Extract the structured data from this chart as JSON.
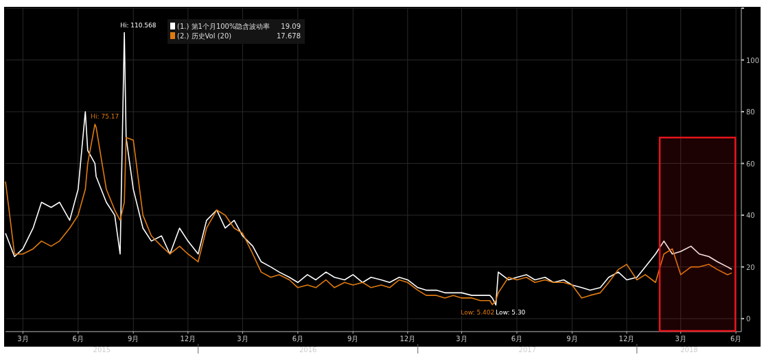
{
  "chart_data": {
    "type": "line",
    "x": [
      "2015-02-14",
      "2015-03-01",
      "2015-03-15",
      "2015-04-01",
      "2015-04-15",
      "2015-05-01",
      "2015-05-15",
      "2015-06-01",
      "2015-06-15",
      "2015-06-27",
      "2015-07-01",
      "2015-07-13",
      "2015-07-15",
      "2015-08-01",
      "2015-08-15",
      "2015-08-24",
      "2015-08-31",
      "2015-09-03",
      "2015-09-15",
      "2015-10-01",
      "2015-10-15",
      "2015-11-01",
      "2015-11-15",
      "2015-12-01",
      "2015-12-15",
      "2016-01-01",
      "2016-01-15",
      "2016-02-01",
      "2016-02-15",
      "2016-03-01",
      "2016-03-15",
      "2016-04-01",
      "2016-04-15",
      "2016-05-01",
      "2016-05-15",
      "2016-06-01",
      "2016-06-15",
      "2016-07-01",
      "2016-07-15",
      "2016-08-01",
      "2016-08-15",
      "2016-09-01",
      "2016-09-15",
      "2016-10-01",
      "2016-10-15",
      "2016-11-01",
      "2016-11-15",
      "2016-12-01",
      "2016-12-15",
      "2017-01-01",
      "2017-01-15",
      "2017-02-01",
      "2017-02-15",
      "2017-03-01",
      "2017-03-15",
      "2017-04-01",
      "2017-04-15",
      "2017-05-01",
      "2017-05-05",
      "2017-05-11",
      "2017-05-15",
      "2017-06-01",
      "2017-06-15",
      "2017-07-01",
      "2017-07-15",
      "2017-08-01",
      "2017-08-15",
      "2017-09-01",
      "2017-09-15",
      "2017-10-01",
      "2017-10-15",
      "2017-11-01",
      "2017-11-15",
      "2017-12-01",
      "2017-12-15",
      "2018-01-01",
      "2018-01-15",
      "2018-02-01",
      "2018-02-15",
      "2018-03-01",
      "2018-03-15",
      "2018-04-01",
      "2018-04-15",
      "2018-05-01",
      "2018-05-15",
      "2018-06-01",
      "2018-06-08"
    ],
    "series": [
      {
        "name": "(1.) 第1个月100%隐含波动率",
        "color": "#ffffff",
        "values": [
          33,
          24,
          27,
          35,
          45,
          43,
          45,
          38,
          50,
          80,
          65,
          60,
          55,
          45,
          40,
          25,
          110.568,
          70,
          50,
          35,
          30,
          32,
          25,
          35,
          30,
          25,
          38,
          42,
          35,
          38,
          32,
          28,
          22,
          20,
          18,
          16,
          14,
          17,
          15,
          18,
          16,
          15,
          17,
          14,
          16,
          15,
          14,
          16,
          15,
          12,
          11,
          11,
          10,
          10,
          10,
          9,
          9,
          9,
          8,
          5.3,
          18,
          15,
          16,
          17,
          15,
          16,
          14,
          15,
          13,
          12,
          11,
          12,
          16,
          18,
          15,
          16,
          20,
          25,
          30,
          25,
          26,
          28,
          25,
          24,
          22,
          20,
          19.09
        ]
      },
      {
        "name": "(2.) 历史Vol (20)",
        "color": "#e07b10",
        "values": [
          53,
          25,
          25,
          27,
          30,
          28,
          30,
          35,
          40,
          50,
          60,
          75.17,
          74,
          50,
          42,
          38,
          45,
          70,
          69,
          40,
          32,
          28,
          25,
          28,
          25,
          22,
          35,
          42,
          40,
          35,
          33,
          25,
          18,
          16,
          17,
          15,
          12,
          13,
          12,
          15,
          12,
          14,
          13,
          14,
          12,
          13,
          12,
          15,
          14,
          11,
          9,
          9,
          8,
          9,
          8,
          8,
          7,
          7,
          5.402,
          7,
          10,
          16,
          15,
          16,
          14,
          15,
          14,
          14,
          13,
          8,
          9,
          10,
          14,
          19,
          21,
          15,
          17,
          14,
          25,
          27,
          17,
          20,
          20,
          21,
          19,
          17,
          17.678
        ]
      }
    ],
    "xlim": [
      "2015-02-14",
      "2018-06-24"
    ],
    "xticks": [
      {
        "value": "2015-03-15",
        "label": "3月"
      },
      {
        "value": "2015-06-15",
        "label": "6月"
      },
      {
        "value": "2015-09-15",
        "label": "9月"
      },
      {
        "value": "2015-12-15",
        "label": "12月"
      },
      {
        "value": "2016-03-15",
        "label": "3月"
      },
      {
        "value": "2016-06-15",
        "label": "6月"
      },
      {
        "value": "2016-09-15",
        "label": "9月"
      },
      {
        "value": "2016-12-15",
        "label": "12月"
      },
      {
        "value": "2017-03-15",
        "label": "3月"
      },
      {
        "value": "2017-06-15",
        "label": "6月"
      },
      {
        "value": "2017-09-15",
        "label": "9月"
      },
      {
        "value": "2017-12-15",
        "label": "12月"
      },
      {
        "value": "2018-03-15",
        "label": "3月"
      },
      {
        "value": "2018-06-15",
        "label": "6月"
      }
    ],
    "ylim": [
      -5,
      120
    ],
    "yticks": [
      0,
      20,
      40,
      60,
      80,
      100,
      {
        "value": 120,
        "label": null
      }
    ],
    "grid": true,
    "legend": "top left",
    "annotations": [
      {
        "text": "Hi: 110.568",
        "x": "2015-08-31",
        "y": 110.568
      },
      {
        "text": "Hi: 75.17",
        "x": "2015-07-13",
        "y": 75.17
      },
      {
        "text": "Low: 5.402",
        "x": "2017-05-05",
        "y": 5.402
      },
      {
        "text": "Low: 5.30",
        "x": "2017-05-11",
        "y": 5.3
      },
      "19.09",
      "17.678",
      "2015",
      "2016",
      "2017",
      "2018"
    ],
    "bands": [
      {
        "axis": "x",
        "from": "2018-02-08",
        "to": "2018-06-14",
        "color": "#e8141b"
      }
    ]
  }
}
